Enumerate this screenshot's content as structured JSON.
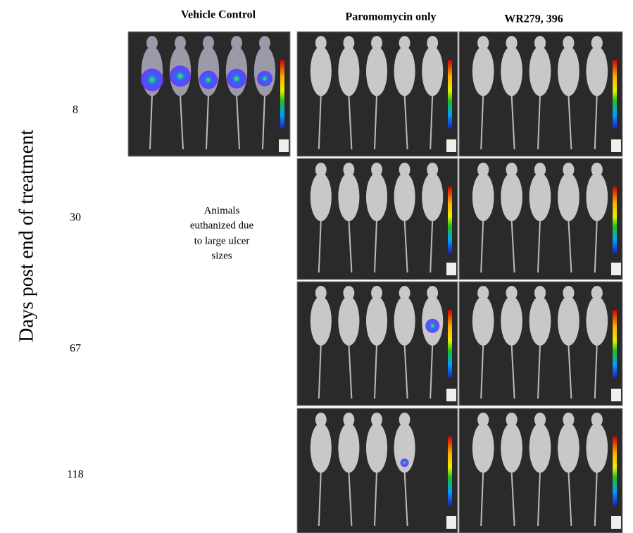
{
  "column_headers": [
    "Vehicle Control",
    "Paromomycin only",
    "WR279, 396"
  ],
  "y_axis_label": "Days post end of treatment",
  "row_labels": [
    "8",
    "30",
    "67",
    "118"
  ],
  "note": [
    "Animals",
    "euthanized due",
    "to large ulcer",
    "sizes"
  ]
}
